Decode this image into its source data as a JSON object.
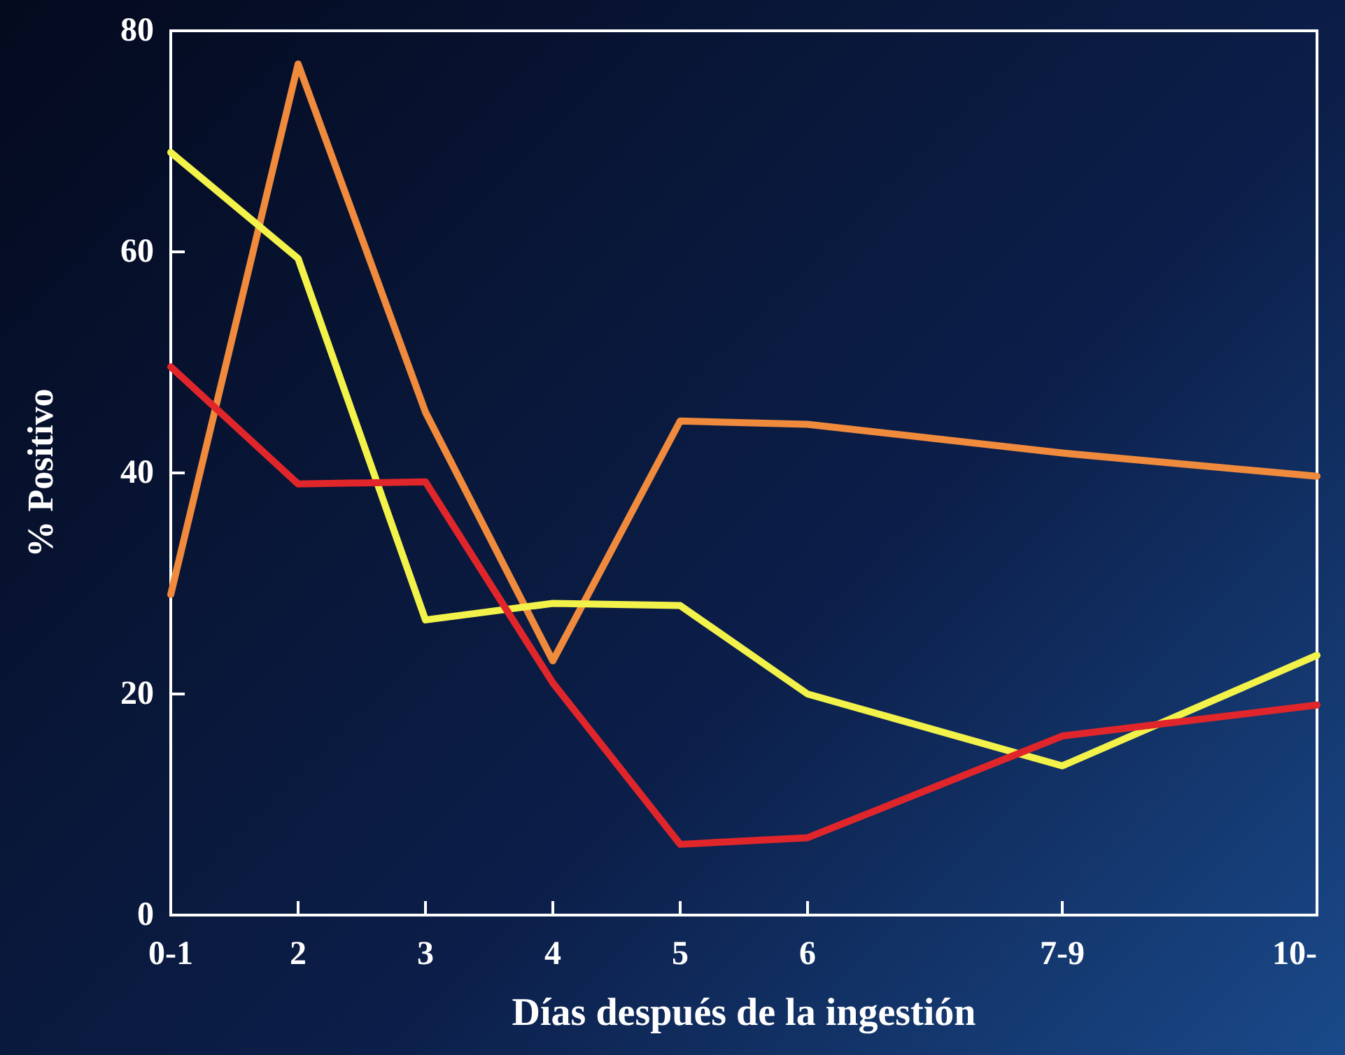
{
  "chart_data": {
    "type": "line",
    "xlabel": "Días después de la ingestión",
    "ylabel": "% Positivo",
    "categories": [
      "0-1",
      "2",
      "3",
      "4",
      "5",
      "6",
      null,
      "7-9",
      null,
      "10-"
    ],
    "ylim": [
      0,
      80
    ],
    "yticks": [
      0,
      20,
      40,
      60,
      80
    ],
    "series": [
      {
        "color": "#f08a3c",
        "values": [
          29,
          77,
          45.5,
          23,
          44.7,
          44.4,
          null,
          41.8,
          null,
          39.7
        ]
      },
      {
        "color": "#f2f24a",
        "values": [
          69,
          59.4,
          26.7,
          28.2,
          28,
          20,
          null,
          13.5,
          null,
          23.5
        ]
      },
      {
        "color": "#e0262a",
        "values": [
          49.6,
          39,
          39.2,
          21,
          6.4,
          7,
          null,
          16.2,
          null,
          19
        ]
      }
    ],
    "grid": false,
    "marker": "none",
    "line_style": "solid"
  }
}
